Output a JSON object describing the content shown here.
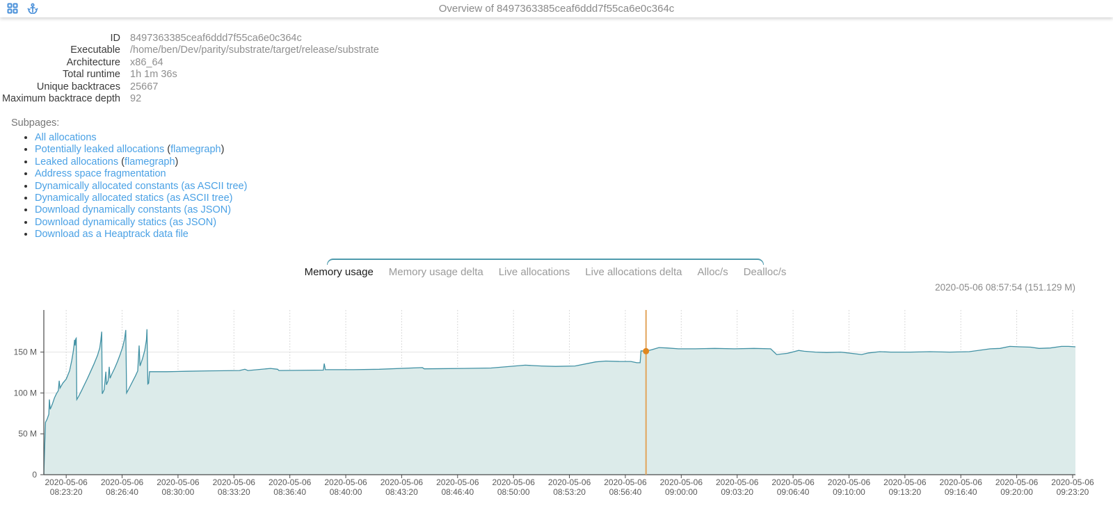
{
  "header": {
    "title": "Overview of 8497363385ceaf6ddd7f55ca6e0c364c",
    "icons": [
      {
        "name": "grid-icon"
      },
      {
        "name": "anchor-icon"
      }
    ],
    "icon_color": "#4a90d9"
  },
  "info": {
    "rows": [
      {
        "label": "ID",
        "value": "8497363385ceaf6ddd7f55ca6e0c364c"
      },
      {
        "label": "Executable",
        "value": "/home/ben/Dev/parity/substrate/target/release/substrate"
      },
      {
        "label": "Architecture",
        "value": "x86_64"
      },
      {
        "label": "Total runtime",
        "value": "1h 1m 36s"
      },
      {
        "label": "Unique backtraces",
        "value": "25667"
      },
      {
        "label": "Maximum backtrace depth",
        "value": "92"
      }
    ]
  },
  "subpages": {
    "heading": "Subpages:",
    "items": [
      [
        {
          "t": "All allocations",
          "link": true
        }
      ],
      [
        {
          "t": "Potentially leaked allocations",
          "link": true
        },
        {
          "t": " (",
          "link": false
        },
        {
          "t": "flamegraph",
          "link": true
        },
        {
          "t": ")",
          "link": false
        }
      ],
      [
        {
          "t": "Leaked allocations",
          "link": true
        },
        {
          "t": " (",
          "link": false
        },
        {
          "t": "flamegraph",
          "link": true
        },
        {
          "t": ")",
          "link": false
        }
      ],
      [
        {
          "t": "Address space fragmentation",
          "link": true
        }
      ],
      [
        {
          "t": "Dynamically allocated constants (as ASCII tree)",
          "link": true
        }
      ],
      [
        {
          "t": "Dynamically allocated statics (as ASCII tree)",
          "link": true
        }
      ],
      [
        {
          "t": "Download dynamically constants (as JSON)",
          "link": true
        }
      ],
      [
        {
          "t": "Download dynamically statics (as JSON)",
          "link": true
        }
      ],
      [
        {
          "t": "Download as a Heaptrack data file",
          "link": true
        }
      ]
    ]
  },
  "tabs": {
    "active_index": 0,
    "items": [
      "Memory usage",
      "Memory usage delta",
      "Live allocations",
      "Live allocations delta",
      "Alloc/s",
      "Dealloc/s"
    ]
  },
  "chart_data": {
    "type": "area",
    "series_name": "Memory usage",
    "x_start_time": "2020-05-06 08:22:00",
    "x_total_seconds": 3690,
    "x_tick_first_offset_s": 80,
    "x_tick_interval_s": 200,
    "x_tick_date": "2020-05-06",
    "x_tick_times": [
      "08:23:20",
      "08:26:40",
      "08:30:00",
      "08:33:20",
      "08:36:40",
      "08:40:00",
      "08:43:20",
      "08:46:40",
      "08:50:00",
      "08:53:20",
      "08:56:40",
      "09:00:00",
      "09:03:20",
      "09:06:40",
      "09:10:00",
      "09:13:20",
      "09:16:40",
      "09:20:00",
      "09:23:20"
    ],
    "y_ticks": [
      {
        "v": 0,
        "label": "0"
      },
      {
        "v": 50,
        "label": "50 M"
      },
      {
        "v": 100,
        "label": "100 M"
      },
      {
        "v": 150,
        "label": "150 M"
      }
    ],
    "y_unit": "M",
    "y_max": 201.5,
    "grid": true,
    "points": [
      [
        0,
        0
      ],
      [
        3,
        34
      ],
      [
        6,
        64
      ],
      [
        12,
        68
      ],
      [
        18,
        74
      ],
      [
        20,
        92
      ],
      [
        23,
        80
      ],
      [
        30,
        86
      ],
      [
        38,
        94
      ],
      [
        45,
        99
      ],
      [
        52,
        103
      ],
      [
        55,
        115
      ],
      [
        58,
        106
      ],
      [
        68,
        112
      ],
      [
        80,
        117
      ],
      [
        92,
        127
      ],
      [
        100,
        140
      ],
      [
        105,
        150
      ],
      [
        108,
        158
      ],
      [
        110,
        165
      ],
      [
        112,
        158
      ],
      [
        114,
        166
      ],
      [
        116,
        167
      ],
      [
        118,
        92
      ],
      [
        125,
        96
      ],
      [
        135,
        103
      ],
      [
        145,
        110
      ],
      [
        155,
        117
      ],
      [
        167,
        126
      ],
      [
        179,
        135
      ],
      [
        192,
        146
      ],
      [
        200,
        155
      ],
      [
        204,
        165
      ],
      [
        207,
        175
      ],
      [
        209,
        99
      ],
      [
        216,
        104
      ],
      [
        222,
        126
      ],
      [
        224,
        110
      ],
      [
        230,
        115
      ],
      [
        234,
        132
      ],
      [
        237,
        118
      ],
      [
        243,
        123
      ],
      [
        253,
        130
      ],
      [
        263,
        138
      ],
      [
        273,
        147
      ],
      [
        282,
        156
      ],
      [
        289,
        166
      ],
      [
        293,
        177
      ],
      [
        296,
        100
      ],
      [
        304,
        105
      ],
      [
        316,
        113
      ],
      [
        328,
        121
      ],
      [
        336,
        127
      ],
      [
        341,
        158
      ],
      [
        344,
        133
      ],
      [
        353,
        142
      ],
      [
        361,
        152
      ],
      [
        367,
        165
      ],
      [
        369,
        178
      ],
      [
        372,
        111
      ],
      [
        375,
        112
      ],
      [
        378,
        126
      ],
      [
        440,
        126
      ],
      [
        510,
        126.5
      ],
      [
        590,
        127
      ],
      [
        700,
        127.5
      ],
      [
        719,
        129
      ],
      [
        730,
        127.5
      ],
      [
        811,
        130
      ],
      [
        836,
        129
      ],
      [
        841,
        127.5
      ],
      [
        1000,
        128
      ],
      [
        1003,
        136
      ],
      [
        1007,
        128.5
      ],
      [
        1100,
        128.5
      ],
      [
        1200,
        129
      ],
      [
        1354,
        131
      ],
      [
        1361,
        129.5
      ],
      [
        1500,
        130
      ],
      [
        1600,
        130.5
      ],
      [
        1722,
        134
      ],
      [
        1780,
        133
      ],
      [
        1830,
        132.5
      ],
      [
        1900,
        133
      ],
      [
        1974,
        138
      ],
      [
        2010,
        139
      ],
      [
        2060,
        138.5
      ],
      [
        2100,
        138.5
      ],
      [
        2121,
        137
      ],
      [
        2133,
        137
      ],
      [
        2136,
        151.5
      ],
      [
        2154,
        151.129
      ],
      [
        2175,
        153
      ],
      [
        2200,
        155.5
      ],
      [
        2230,
        155
      ],
      [
        2270,
        154
      ],
      [
        2330,
        154
      ],
      [
        2400,
        154.5
      ],
      [
        2470,
        154
      ],
      [
        2540,
        154.5
      ],
      [
        2600,
        154
      ],
      [
        2621,
        147
      ],
      [
        2660,
        148.5
      ],
      [
        2700,
        152
      ],
      [
        2720,
        151
      ],
      [
        2760,
        150
      ],
      [
        2800,
        149.5
      ],
      [
        2850,
        150
      ],
      [
        2925,
        147
      ],
      [
        2950,
        149
      ],
      [
        2990,
        150.5
      ],
      [
        3030,
        150
      ],
      [
        3100,
        150
      ],
      [
        3170,
        150.5
      ],
      [
        3240,
        150
      ],
      [
        3310,
        150.5
      ],
      [
        3385,
        154
      ],
      [
        3420,
        154.5
      ],
      [
        3455,
        157
      ],
      [
        3490,
        156.5
      ],
      [
        3530,
        156
      ],
      [
        3560,
        154.5
      ],
      [
        3600,
        155
      ],
      [
        3640,
        157
      ],
      [
        3665,
        157
      ],
      [
        3690,
        156.5
      ]
    ],
    "cursor": {
      "t_s": 2154,
      "value": 151.129,
      "label": "2020-05-06 08:57:54 (151.129 M)"
    },
    "colors": {
      "line": "#4191a4",
      "fill": "#dcebea",
      "cursor_line": "#e2a55c",
      "cursor_dot": "#e0871f",
      "grid": "#e2e2e2",
      "grid_vertical": "#d9d9d9",
      "axis": "#4a4a4a",
      "axis_text": "#5a5a5a"
    }
  }
}
